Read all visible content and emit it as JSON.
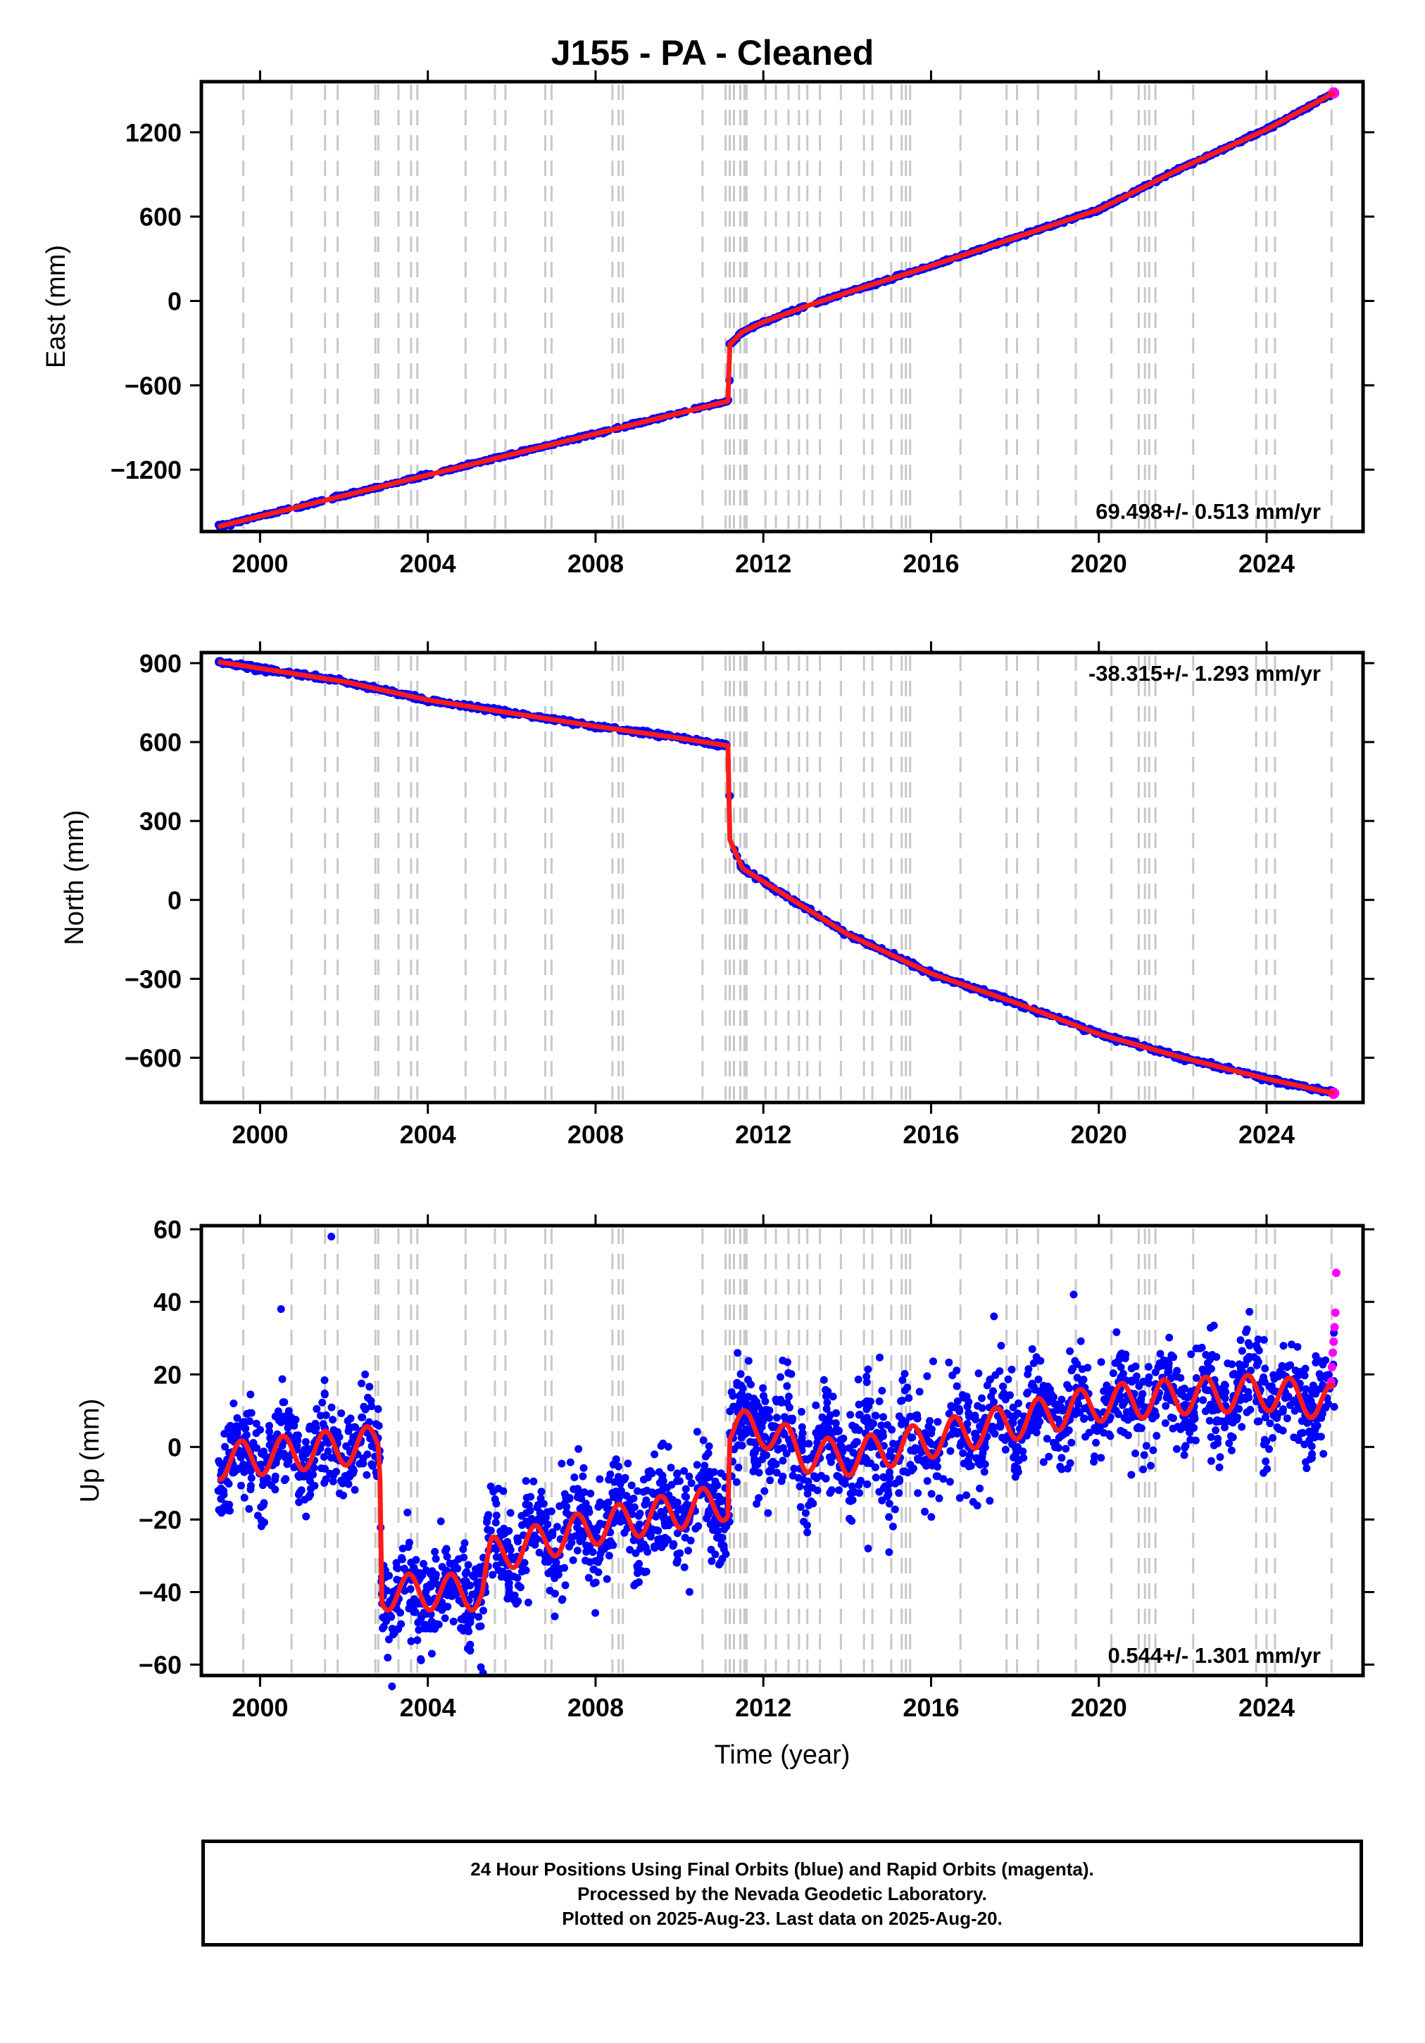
{
  "title": "J155  - PA - Cleaned",
  "footer": {
    "line1": "24 Hour Positions Using Final Orbits (blue) and Rapid Orbits (magenta).",
    "line2": "Processed by the Nevada Geodetic Laboratory.",
    "line3": "Plotted on 2025-Aug-23. Last data on 2025-Aug-20."
  },
  "colors": {
    "final_orbits": "#0000ff",
    "rapid_orbits": "#ff00ff",
    "model_fit": "#ff1a1a",
    "step_lines": "#c8c8c8",
    "frame": "#000000"
  },
  "chart_data": [
    {
      "type": "scatter",
      "panel": "east",
      "ylabel": "East (mm)",
      "xlabel": "",
      "xlim": [
        1998.6,
        2026.3
      ],
      "ylim": [
        -1640,
        1560
      ],
      "x_ticks": [
        2000,
        2004,
        2008,
        2012,
        2016,
        2020,
        2024
      ],
      "y_ticks": [
        -1200,
        -600,
        0,
        600,
        1200
      ],
      "velocity_label": "69.498+/- 0.513 mm/yr",
      "velocity_label_position": "bottom-right",
      "trend": [
        [
          1999.0,
          -1605
        ],
        [
          2011.19,
          -710
        ],
        [
          2011.2,
          -310
        ],
        [
          2011.5,
          -220
        ],
        [
          2012.0,
          -150
        ],
        [
          2013.0,
          -40
        ],
        [
          2014.0,
          60
        ],
        [
          2016.0,
          250
        ],
        [
          2018.0,
          450
        ],
        [
          2020.0,
          650
        ],
        [
          2022.0,
          950
        ],
        [
          2024.0,
          1220
        ],
        [
          2025.6,
          1480
        ]
      ]
    },
    {
      "type": "scatter",
      "panel": "north",
      "ylabel": "North (mm)",
      "xlabel": "",
      "xlim": [
        1998.6,
        2026.3
      ],
      "ylim": [
        -770,
        940
      ],
      "x_ticks": [
        2000,
        2004,
        2008,
        2012,
        2016,
        2020,
        2024
      ],
      "y_ticks": [
        -600,
        -300,
        0,
        300,
        600,
        900
      ],
      "velocity_label": "-38.315+/- 1.293 mm/yr",
      "velocity_label_position": "top-right",
      "trend": [
        [
          1999.0,
          905
        ],
        [
          2002.0,
          830
        ],
        [
          2004.0,
          760
        ],
        [
          2006.0,
          710
        ],
        [
          2008.0,
          660
        ],
        [
          2010.0,
          615
        ],
        [
          2011.19,
          585
        ],
        [
          2011.2,
          230
        ],
        [
          2011.5,
          120
        ],
        [
          2012.0,
          70
        ],
        [
          2014.0,
          -130
        ],
        [
          2016.0,
          -280
        ],
        [
          2018.0,
          -390
        ],
        [
          2020.0,
          -510
        ],
        [
          2022.0,
          -600
        ],
        [
          2024.0,
          -680
        ],
        [
          2025.6,
          -735
        ]
      ]
    },
    {
      "type": "scatter",
      "panel": "up",
      "ylabel": "Up (mm)",
      "xlabel": "Time (year)",
      "xlim": [
        1998.6,
        2026.3
      ],
      "ylim": [
        -63,
        61
      ],
      "x_ticks": [
        2000,
        2004,
        2008,
        2012,
        2016,
        2020,
        2024
      ],
      "y_ticks": [
        -60,
        -40,
        -20,
        0,
        20,
        40,
        60
      ],
      "velocity_label": "0.544+/- 1.301 mm/yr",
      "velocity_label_position": "bottom-right",
      "trend": [
        [
          1999.0,
          -4
        ],
        [
          2002.85,
          1
        ],
        [
          2002.9,
          -40
        ],
        [
          2005.3,
          -40
        ],
        [
          2005.5,
          -30
        ],
        [
          2008.0,
          -22
        ],
        [
          2011.19,
          -15
        ],
        [
          2011.2,
          5
        ],
        [
          2012.0,
          5
        ],
        [
          2013.0,
          -2
        ],
        [
          2014.0,
          -3
        ],
        [
          2016.0,
          2
        ],
        [
          2018.0,
          7
        ],
        [
          2020.0,
          12
        ],
        [
          2022.0,
          14
        ],
        [
          2024.0,
          15
        ],
        [
          2025.6,
          12
        ]
      ],
      "seasonal_amplitude": 5,
      "outliers": [
        [
          2001.7,
          58
        ],
        [
          2019.4,
          42
        ],
        [
          2017.5,
          36
        ],
        [
          2000.5,
          38
        ],
        [
          2015.0,
          -29
        ],
        [
          2014.5,
          -28
        ]
      ],
      "rapid_orbit_points": [
        [
          2025.52,
          17
        ],
        [
          2025.54,
          18
        ],
        [
          2025.56,
          22
        ],
        [
          2025.58,
          26
        ],
        [
          2025.6,
          29
        ],
        [
          2025.62,
          33
        ],
        [
          2025.64,
          37
        ],
        [
          2025.66,
          48
        ]
      ]
    }
  ],
  "step_epochs": [
    1999.6,
    2000.75,
    2001.55,
    2001.85,
    2002.75,
    2002.82,
    2003.3,
    2003.6,
    2003.75,
    2004.9,
    2005.6,
    2005.85,
    2006.8,
    2006.95,
    2008.4,
    2008.55,
    2008.65,
    2010.55,
    2011.1,
    2011.2,
    2011.3,
    2011.45,
    2011.55,
    2011.6,
    2012.05,
    2012.3,
    2012.6,
    2012.85,
    2013.05,
    2013.35,
    2013.85,
    2014.4,
    2014.6,
    2015.05,
    2015.3,
    2015.4,
    2015.5,
    2016.7,
    2017.8,
    2018.05,
    2018.55,
    2019.45,
    2020.3,
    2020.95,
    2021.1,
    2021.2,
    2021.35,
    2022.25,
    2023.75,
    2024.0,
    2024.2,
    2025.55
  ]
}
